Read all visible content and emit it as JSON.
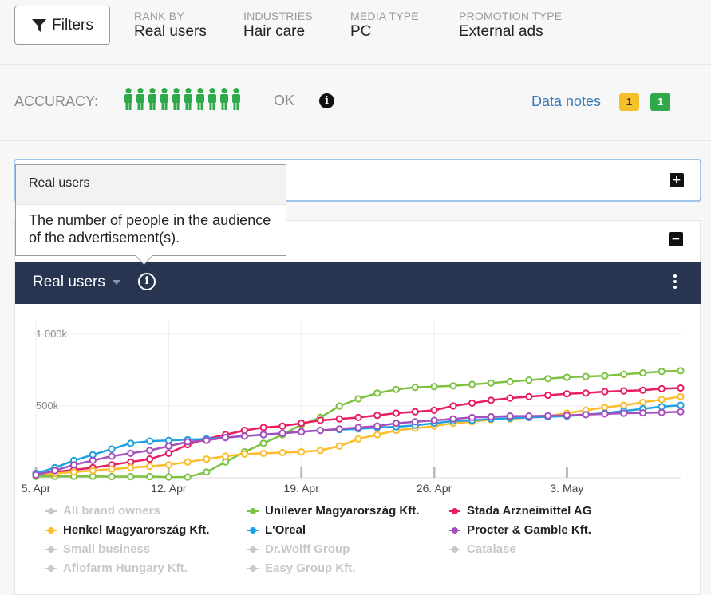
{
  "filters": {
    "button_label": "Filters",
    "groups": [
      {
        "label": "RANK BY",
        "value": "Real users"
      },
      {
        "label": "INDUSTRIES",
        "value": "Hair care"
      },
      {
        "label": "MEDIA TYPE",
        "value": "PC"
      },
      {
        "label": "PROMOTION TYPE",
        "value": "External ads"
      }
    ]
  },
  "accuracy": {
    "label": "ACCURACY:",
    "people_filled": 10,
    "people_total": 10,
    "people_color": "#2eaa4a",
    "status": "OK",
    "info_icon": "i",
    "data_notes_label": "Data notes",
    "badge_yellow": "1",
    "badge_green": "1"
  },
  "tooltip": {
    "title": "Real users",
    "body": "The number of people in the audience of the advertisement(s)."
  },
  "chart_header": {
    "title": "Real users",
    "info_icon": "i"
  },
  "chart_data": {
    "type": "line",
    "y_ticks": [
      {
        "value": 1000000,
        "label": "1 000k"
      },
      {
        "value": 500000,
        "label": "500k"
      }
    ],
    "ylim": [
      0,
      1000000
    ],
    "x_ticks": [
      {
        "day": 0,
        "label": "5. Apr"
      },
      {
        "day": 7,
        "label": "12. Apr"
      },
      {
        "day": 14,
        "label": "19. Apr"
      },
      {
        "day": 21,
        "label": "26. Apr"
      },
      {
        "day": 28,
        "label": "3. May"
      }
    ],
    "xlim": [
      0,
      34
    ],
    "series": [
      {
        "name": "Unilever Magyarország Kft.",
        "color": "#7ec242",
        "values": [
          10000,
          10000,
          10000,
          10000,
          8000,
          8000,
          8000,
          5000,
          5000,
          40000,
          110000,
          180000,
          240000,
          300000,
          370000,
          420000,
          500000,
          550000,
          590000,
          615000,
          630000,
          635000,
          640000,
          650000,
          660000,
          670000,
          680000,
          690000,
          700000,
          705000,
          710000,
          720000,
          730000,
          740000,
          745000
        ]
      },
      {
        "name": "Stada Arzneimittel AG",
        "color": "#ea1d63",
        "values": [
          20000,
          40000,
          55000,
          70000,
          90000,
          110000,
          130000,
          170000,
          230000,
          270000,
          300000,
          330000,
          350000,
          360000,
          380000,
          400000,
          410000,
          420000,
          435000,
          450000,
          460000,
          470000,
          500000,
          520000,
          540000,
          555000,
          565000,
          575000,
          585000,
          590000,
          600000,
          605000,
          610000,
          620000,
          625000
        ]
      },
      {
        "name": "Henkel Magyarország Kft.",
        "color": "#fcbc2c",
        "values": [
          20000,
          30000,
          40000,
          50000,
          60000,
          70000,
          80000,
          90000,
          110000,
          130000,
          150000,
          165000,
          170000,
          175000,
          180000,
          190000,
          220000,
          270000,
          300000,
          330000,
          345000,
          360000,
          380000,
          390000,
          405000,
          410000,
          420000,
          430000,
          450000,
          470000,
          490000,
          505000,
          525000,
          545000,
          565000
        ]
      },
      {
        "name": "L'Oreal",
        "color": "#1fa0e3",
        "values": [
          30000,
          70000,
          120000,
          160000,
          200000,
          240000,
          255000,
          260000,
          265000,
          270000,
          280000,
          290000,
          300000,
          310000,
          320000,
          330000,
          335000,
          340000,
          350000,
          355000,
          365000,
          380000,
          395000,
          400000,
          410000,
          415000,
          420000,
          425000,
          430000,
          440000,
          450000,
          465000,
          480000,
          495000,
          505000
        ]
      },
      {
        "name": "Procter & Gamble Kft.",
        "color": "#a54fbd",
        "values": [
          20000,
          50000,
          90000,
          120000,
          150000,
          170000,
          190000,
          220000,
          250000,
          260000,
          280000,
          290000,
          300000,
          310000,
          320000,
          330000,
          340000,
          350000,
          360000,
          380000,
          390000,
          400000,
          410000,
          420000,
          425000,
          430000,
          430000,
          432000,
          435000,
          440000,
          445000,
          450000,
          452000,
          455000,
          460000
        ]
      }
    ],
    "legend": [
      {
        "name": "All brand owners",
        "active": false
      },
      {
        "name": "Unilever Magyarország Kft.",
        "active": true,
        "color": "#7ec242"
      },
      {
        "name": "Stada Arzneimittel AG",
        "active": true,
        "color": "#ea1d63"
      },
      {
        "name": "Henkel Magyarország Kft.",
        "active": true,
        "color": "#fcbc2c"
      },
      {
        "name": "L'Oreal",
        "active": true,
        "color": "#1fa0e3"
      },
      {
        "name": "Procter & Gamble Kft.",
        "active": true,
        "color": "#a54fbd"
      },
      {
        "name": "Small business",
        "active": false
      },
      {
        "name": "Dr.Wolff Group",
        "active": false
      },
      {
        "name": "Catalase",
        "active": false
      },
      {
        "name": "Aflofarm Hungary Kft.",
        "active": false
      },
      {
        "name": "Easy Group Kft.",
        "active": false
      }
    ],
    "inactive_color": "#c8c8c8",
    "legend_placement": "bottom",
    "grid": true
  }
}
